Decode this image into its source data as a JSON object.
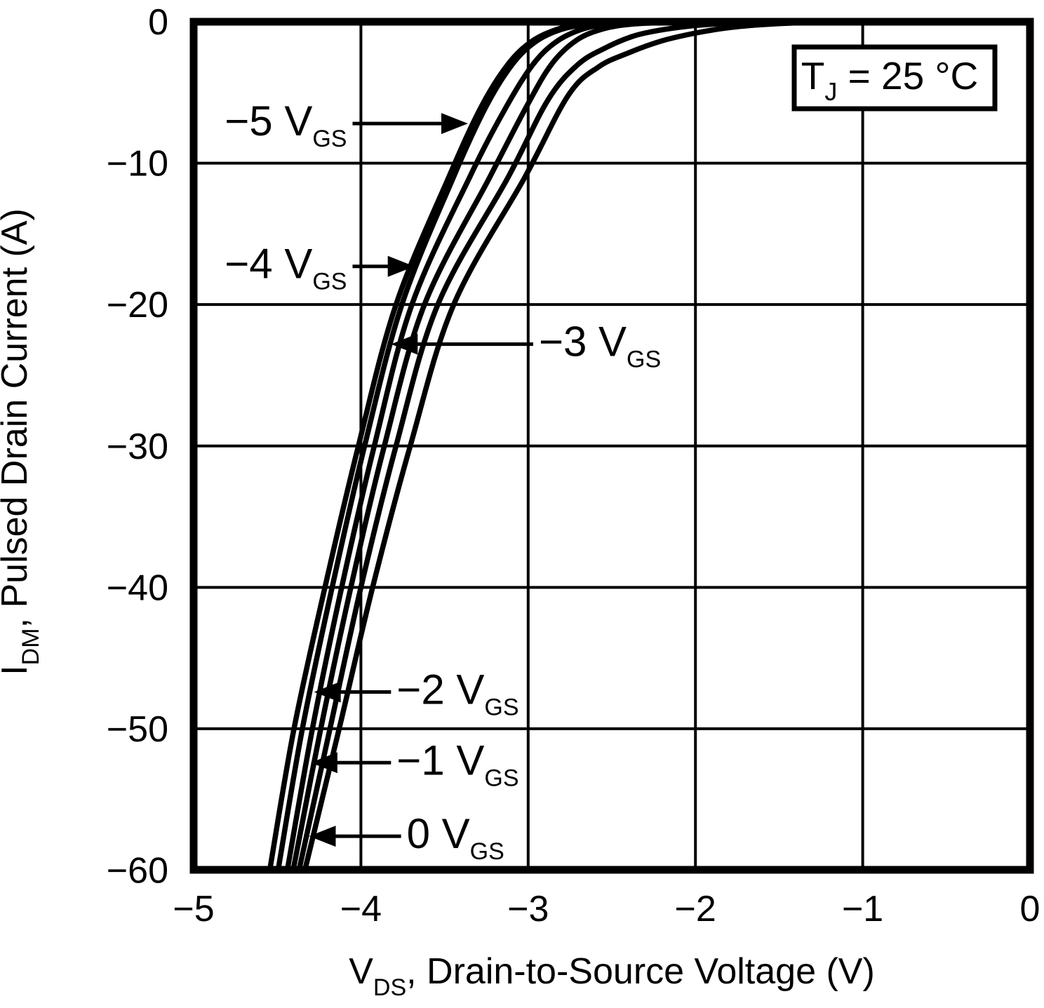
{
  "colors": {
    "background": "#ffffff",
    "stroke": "#000000"
  },
  "annotation_box": {
    "pre": "T",
    "sub": "J",
    "post": " = 25 °C"
  },
  "x_axis": {
    "title_pre": "V",
    "title_sub": "DS",
    "title_post": ", Drain-to-Source Voltage (V)",
    "tick_labels": [
      "−5",
      "−4",
      "−3",
      "−2",
      "−1",
      "0"
    ],
    "tick_values": [
      -5,
      -4,
      -3,
      -2,
      -1,
      0
    ]
  },
  "y_axis": {
    "title_pre": "I",
    "title_sub": "DM",
    "title_post": ", Pulsed Drain Current (A)",
    "tick_labels": [
      "0",
      "−10",
      "−20",
      "−30",
      "−40",
      "−50",
      "−60"
    ],
    "tick_values": [
      0,
      -10,
      -20,
      -30,
      -40,
      -50,
      -60
    ]
  },
  "chart_data": {
    "type": "line",
    "title": "",
    "xlabel": "VDS, Drain-to-Source Voltage (V)",
    "ylabel": "IDM, Pulsed Drain Current (A)",
    "xlim": [
      -5,
      0
    ],
    "ylim": [
      -60,
      0
    ],
    "grid": true,
    "condition": "TJ = 25 °C",
    "series": [
      {
        "name": "-5 VGS",
        "points": [
          [
            -4.567,
            -61.5
          ],
          [
            -4.545,
            -60
          ],
          [
            -4.4,
            -50
          ],
          [
            -4.215,
            -40
          ],
          [
            -4.015,
            -30
          ],
          [
            -3.79,
            -20
          ],
          [
            -3.475,
            -11
          ],
          [
            -3.28,
            -6
          ],
          [
            -3.12,
            -3
          ],
          [
            -2.98,
            -1.4
          ],
          [
            -2.83,
            -0.55
          ],
          [
            -2.68,
            -0.2
          ],
          [
            -2.48,
            -0.07
          ],
          [
            -2.15,
            -0.02
          ]
        ]
      },
      {
        "name": "-4 VGS",
        "points": [
          [
            -4.517,
            -61.5
          ],
          [
            -4.495,
            -60
          ],
          [
            -4.35,
            -50
          ],
          [
            -4.172,
            -40
          ],
          [
            -3.978,
            -30
          ],
          [
            -3.755,
            -20
          ],
          [
            -3.447,
            -11
          ],
          [
            -3.252,
            -6
          ],
          [
            -3.094,
            -3
          ],
          [
            -2.954,
            -1.4
          ],
          [
            -2.804,
            -0.55
          ],
          [
            -2.648,
            -0.2
          ],
          [
            -2.448,
            -0.07
          ],
          [
            -2.12,
            -0.02
          ]
        ]
      },
      {
        "name": "-3 VGS",
        "points": [
          [
            -4.462,
            -61.5
          ],
          [
            -4.44,
            -60
          ],
          [
            -4.29,
            -50
          ],
          [
            -4.115,
            -40
          ],
          [
            -3.92,
            -30
          ],
          [
            -3.695,
            -20
          ],
          [
            -3.35,
            -11
          ],
          [
            -3.13,
            -6
          ],
          [
            -2.97,
            -3
          ],
          [
            -2.83,
            -1.4
          ],
          [
            -2.67,
            -0.5
          ],
          [
            -2.51,
            -0.18
          ],
          [
            -2.3,
            -0.06
          ],
          [
            -1.99,
            -0.015
          ]
        ]
      },
      {
        "name": "-2 VGS",
        "points": [
          [
            -4.427,
            -61.5
          ],
          [
            -4.405,
            -60
          ],
          [
            -4.24,
            -50
          ],
          [
            -4.06,
            -40
          ],
          [
            -3.86,
            -30
          ],
          [
            -3.62,
            -20
          ],
          [
            -3.23,
            -11
          ],
          [
            -3.01,
            -6
          ],
          [
            -2.86,
            -3
          ],
          [
            -2.71,
            -1.3
          ],
          [
            -2.55,
            -0.5
          ],
          [
            -2.38,
            -0.17
          ],
          [
            -2.15,
            -0.05
          ],
          [
            -1.88,
            -0.015
          ]
        ]
      },
      {
        "name": "-1 VGS",
        "points": [
          [
            -4.392,
            -61.5
          ],
          [
            -4.37,
            -60
          ],
          [
            -4.185,
            -50
          ],
          [
            -4.0,
            -40
          ],
          [
            -3.79,
            -30
          ],
          [
            -3.54,
            -20
          ],
          [
            -3.12,
            -11
          ],
          [
            -2.88,
            -5.5
          ],
          [
            -2.7,
            -3.0
          ],
          [
            -2.53,
            -1.8
          ],
          [
            -2.38,
            -1.05
          ],
          [
            -2.26,
            -0.7
          ],
          [
            -2.1,
            -0.4
          ],
          [
            -1.93,
            -0.2
          ],
          [
            -1.7,
            -0.08
          ],
          [
            -1.45,
            -0.025
          ]
        ]
      },
      {
        "name": "0 VGS",
        "points": [
          [
            -4.357,
            -61.5
          ],
          [
            -4.335,
            -60
          ],
          [
            -4.13,
            -50
          ],
          [
            -3.93,
            -40
          ],
          [
            -3.705,
            -30
          ],
          [
            -3.445,
            -20
          ],
          [
            -3.02,
            -11
          ],
          [
            -2.76,
            -5.2
          ],
          [
            -2.58,
            -3.2
          ],
          [
            -2.4,
            -2.2
          ],
          [
            -2.2,
            -1.35
          ],
          [
            -2.0,
            -0.8
          ],
          [
            -1.82,
            -0.45
          ],
          [
            -1.62,
            -0.22
          ],
          [
            -1.4,
            -0.08
          ],
          [
            -1.12,
            -0.02
          ]
        ]
      }
    ],
    "annotations": [
      {
        "text": "−5 V",
        "sub": "GS",
        "from_v": -4.05,
        "to_v": -3.36,
        "i": -7.2,
        "dir": "right"
      },
      {
        "text": "−4 V",
        "sub": "GS",
        "from_v": -4.05,
        "to_v": -3.68,
        "i": -17.3,
        "dir": "right"
      },
      {
        "text": "−3 V",
        "sub": "GS",
        "from_v": -2.97,
        "to_v": -3.82,
        "i": -22.8,
        "dir": "left"
      },
      {
        "text": "−2 V",
        "sub": "GS",
        "from_v": -3.82,
        "to_v": -4.28,
        "i": -47.4,
        "dir": "left"
      },
      {
        "text": "−1 V",
        "sub": "GS",
        "from_v": -3.82,
        "to_v": -4.3,
        "i": -52.4,
        "dir": "left"
      },
      {
        "text": "0 V",
        "sub": "GS",
        "from_v": -3.76,
        "to_v": -4.31,
        "i": -57.6,
        "dir": "left"
      }
    ]
  }
}
